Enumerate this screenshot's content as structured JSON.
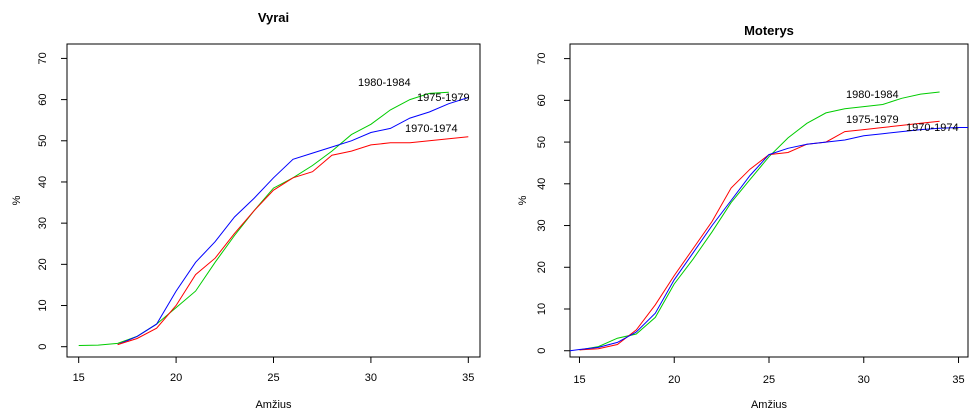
{
  "chart_data": [
    {
      "type": "line",
      "title": "Vyrai",
      "xlabel": "Amžius",
      "ylabel": "%",
      "xlim": [
        14.4,
        35.6
      ],
      "ylim": [
        -2.5,
        73.5
      ],
      "xticks": [
        15,
        20,
        25,
        30,
        35
      ],
      "yticks": [
        0,
        10,
        20,
        30,
        40,
        50,
        60,
        70
      ],
      "grid": false,
      "legend": "none",
      "series": [
        {
          "name": "1980-1984",
          "color": "#00cc00",
          "x": [
            15,
            16,
            17,
            18,
            19,
            20,
            21,
            22,
            23,
            24,
            25,
            26,
            27,
            28,
            29,
            30,
            31,
            32,
            33,
            34
          ],
          "y": [
            0.3,
            0.4,
            0.8,
            2.5,
            5.5,
            9.5,
            13.5,
            20.5,
            27,
            33,
            38.5,
            41,
            44,
            47.5,
            51.5,
            54,
            57.5,
            60,
            61.5,
            61.8
          ]
        },
        {
          "name": "1975-1979",
          "color": "#0000ff",
          "x": [
            17,
            18,
            19,
            20,
            21,
            22,
            23,
            24,
            25,
            26,
            27,
            28,
            29,
            30,
            31,
            32,
            33,
            34,
            35
          ],
          "y": [
            0.5,
            2.5,
            5.5,
            13.5,
            20.5,
            25.5,
            31.5,
            36,
            41,
            45.5,
            47,
            48.5,
            50,
            52,
            53,
            55.5,
            57,
            59,
            60.5
          ]
        },
        {
          "name": "1970-1974",
          "color": "#ff0000",
          "x": [
            17,
            18,
            19,
            20,
            21,
            22,
            23,
            24,
            25,
            26,
            27,
            28,
            29,
            30,
            31,
            32,
            33,
            34,
            35
          ],
          "y": [
            0.5,
            2,
            4.5,
            10,
            17.5,
            21.5,
            27.5,
            33,
            38,
            41,
            42.5,
            46.5,
            47.5,
            49,
            49.5,
            49.5,
            50,
            50.5,
            51
          ]
        }
      ]
    },
    {
      "type": "line",
      "title": "Moterys",
      "xlabel": "Amžius",
      "ylabel": "%",
      "xlim": [
        14.5,
        35.5
      ],
      "ylim": [
        -1.5,
        73.5
      ],
      "xticks": [
        15,
        20,
        25,
        30,
        35
      ],
      "yticks": [
        0,
        10,
        20,
        30,
        40,
        50,
        60,
        70
      ],
      "grid": false,
      "legend": "none",
      "series": [
        {
          "name": "1980-1984",
          "color": "#00cc00",
          "x": [
            15,
            16,
            17,
            18,
            19,
            20,
            21,
            22,
            23,
            24,
            25,
            26,
            27,
            28,
            29,
            30,
            31,
            32,
            33,
            34
          ],
          "y": [
            0.2,
            1,
            3,
            4,
            8,
            16,
            22,
            28.5,
            35.5,
            41,
            46.5,
            51,
            54.5,
            57,
            58,
            58.5,
            59,
            60.5,
            61.5,
            62
          ]
        },
        {
          "name": "1975-1979",
          "color": "#ff0000",
          "x": [
            15,
            16,
            17,
            18,
            19,
            20,
            21,
            22,
            23,
            24,
            25,
            26,
            27,
            28,
            29,
            30,
            31,
            32,
            33,
            34
          ],
          "y": [
            0.2,
            0.5,
            1.5,
            5,
            11,
            18,
            24.5,
            31,
            39,
            43.5,
            47,
            47.5,
            49.5,
            50,
            52.5,
            53,
            53.5,
            54,
            54.5,
            55
          ]
        },
        {
          "name": "1970-1974",
          "color": "#0000ff",
          "x": [
            14.5,
            15,
            16,
            17,
            18,
            19,
            20,
            21,
            22,
            23,
            24,
            25,
            26,
            27,
            28,
            29,
            30,
            31,
            32,
            33,
            34,
            35,
            35.5
          ],
          "y": [
            0,
            0.3,
            0.8,
            2,
            4.5,
            9,
            17,
            23.5,
            30,
            36,
            42,
            47,
            48.5,
            49.5,
            50,
            50.5,
            51.5,
            52,
            52.5,
            53,
            53.3,
            53.5,
            53.5
          ]
        }
      ]
    }
  ]
}
